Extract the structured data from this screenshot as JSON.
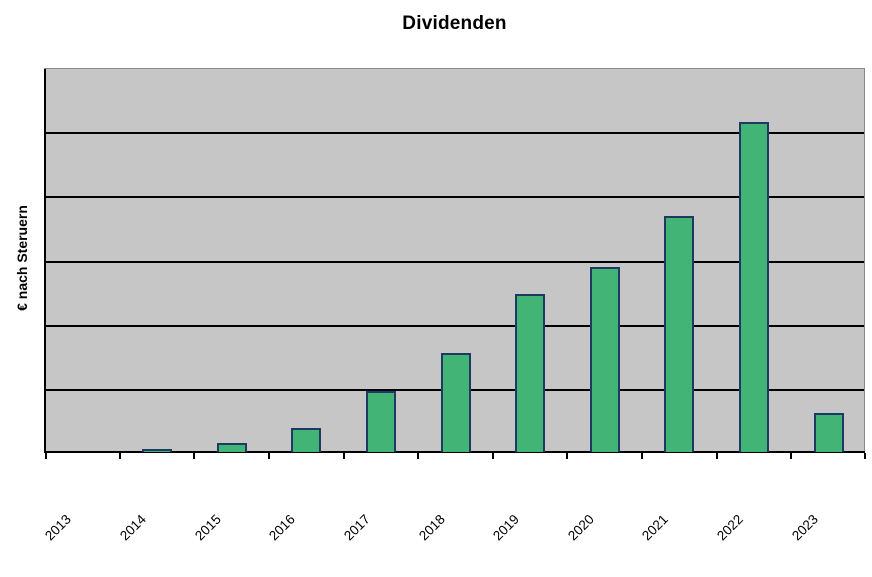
{
  "chart_data": {
    "type": "bar",
    "title": "Dividenden",
    "xlabel": "",
    "ylabel": "€ nach Steruern",
    "categories": [
      "2013",
      "2014",
      "2015",
      "2016",
      "2017",
      "2018",
      "2019",
      "2020",
      "2021",
      "2022",
      "2023"
    ],
    "series": [
      {
        "name": "Dividenden",
        "values": [
          0,
          0.04,
          0.14,
          0.37,
          0.95,
          1.55,
          2.47,
          2.89,
          3.68,
          5.15,
          0.6
        ]
      }
    ],
    "ylim": [
      0,
      6
    ],
    "y_divisions": 6,
    "y_tick_labels_visible": false,
    "grid": "horizontal",
    "legend_position": "none",
    "colors": {
      "bar_fill": "#42b476",
      "bar_border": "#1f3864",
      "plot_background": "#c6c6c6",
      "plot_border": "#8a8a8a",
      "gridline": "#000000",
      "axis": "#000000",
      "page_background": "#ffffff",
      "text": "#000000"
    }
  }
}
